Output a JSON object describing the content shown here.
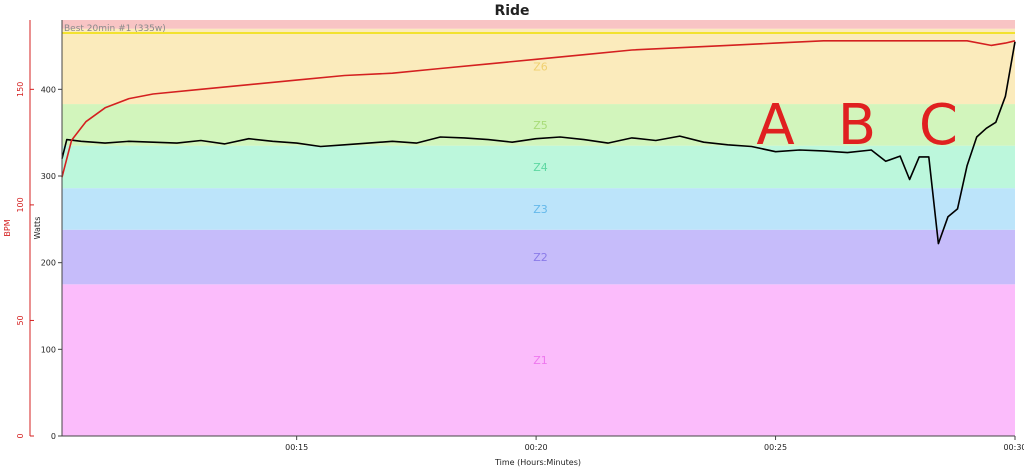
{
  "chart_data": {
    "type": "line",
    "title": "Ride",
    "xlabel": "Time (Hours:Minutes)",
    "ylabel": "Watts",
    "ylabel_secondary": "BPM",
    "x_range_minutes": [
      10.1,
      30
    ],
    "x_ticks": [
      {
        "minute": 15,
        "label": "00:15"
      },
      {
        "minute": 20,
        "label": "00:20"
      },
      {
        "minute": 25,
        "label": "00:25"
      },
      {
        "minute": 30,
        "label": "00:30"
      }
    ],
    "ylim_watts": [
      0,
      480
    ],
    "y_ticks_watts": [
      0,
      100,
      200,
      300,
      400
    ],
    "ylim_bpm": [
      0,
      180
    ],
    "y_ticks_bpm": [
      0,
      50,
      100,
      150
    ],
    "grid": false,
    "zones": [
      {
        "name": "Z1",
        "from": 0,
        "to": 175,
        "color": "#fbbcfb",
        "label_color": "#ee77ee"
      },
      {
        "name": "Z2",
        "from": 175,
        "to": 238,
        "color": "#c6bcfa",
        "label_color": "#8a7be8"
      },
      {
        "name": "Z3",
        "from": 238,
        "to": 286,
        "color": "#bce4fa",
        "label_color": "#64b8ea"
      },
      {
        "name": "Z4",
        "from": 286,
        "to": 335,
        "color": "#bcf7dc",
        "label_color": "#5ed8a2"
      },
      {
        "name": "Z5",
        "from": 335,
        "to": 383,
        "color": "#d2f5bc",
        "label_color": "#a8dc78"
      },
      {
        "name": "Z6",
        "from": 383,
        "to": 470,
        "color": "#fbebbc",
        "label_color": "#f0d070"
      },
      {
        "name": "",
        "from": 470,
        "to": 480,
        "color": "#f8c4c4",
        "label_color": ""
      }
    ],
    "best_interval": {
      "label": "Best 20min #1 (335w)",
      "color": "#f0e000",
      "value_watts": 465
    },
    "series": [
      {
        "name": "",
        "axis": "watts",
        "color": "#000000",
        "x": [
          10.1,
          10.2,
          10.5,
          11,
          11.5,
          12,
          12.5,
          13,
          13.5,
          14,
          14.5,
          15,
          15.5,
          16,
          16.5,
          17,
          17.5,
          18,
          18.5,
          19,
          19.5,
          20,
          20.5,
          21,
          21.5,
          22,
          22.5,
          23,
          23.5,
          24,
          24.5,
          25,
          25.5,
          26,
          26.5,
          27,
          27.3,
          27.6,
          27.8,
          28,
          28.2,
          28.4,
          28.6,
          28.8,
          29,
          29.2,
          29.4,
          29.6,
          29.8,
          30
        ],
        "y": [
          320,
          342,
          340,
          338,
          340,
          339,
          338,
          341,
          337,
          343,
          340,
          338,
          334,
          336,
          338,
          340,
          338,
          345,
          344,
          342,
          339,
          343,
          345,
          342,
          338,
          344,
          341,
          346,
          339,
          336,
          334,
          328,
          330,
          329,
          327,
          330,
          317,
          323,
          296,
          322,
          322,
          222,
          253,
          262,
          312,
          345,
          355,
          362,
          392,
          455
        ]
      },
      {
        "name": "",
        "axis": "bpm",
        "color": "#d42020",
        "x": [
          10.1,
          10.3,
          10.6,
          11,
          11.5,
          12,
          13,
          14,
          15,
          16,
          17,
          18,
          19,
          20,
          21,
          22,
          23,
          24,
          25,
          26,
          27,
          28,
          28.5,
          29,
          29.5,
          29.8,
          30
        ],
        "y": [
          112,
          128,
          136,
          142,
          146,
          148,
          150,
          152,
          154,
          156,
          157,
          159,
          161,
          163,
          165,
          167,
          168,
          169,
          170,
          171,
          171,
          171,
          171,
          171,
          169,
          170,
          171
        ]
      }
    ],
    "annotations": [
      {
        "text": "A",
        "minute": 25.0,
        "watts": 360
      },
      {
        "text": "B",
        "minute": 26.7,
        "watts": 360
      },
      {
        "text": "C",
        "minute": 28.4,
        "watts": 360
      }
    ]
  }
}
